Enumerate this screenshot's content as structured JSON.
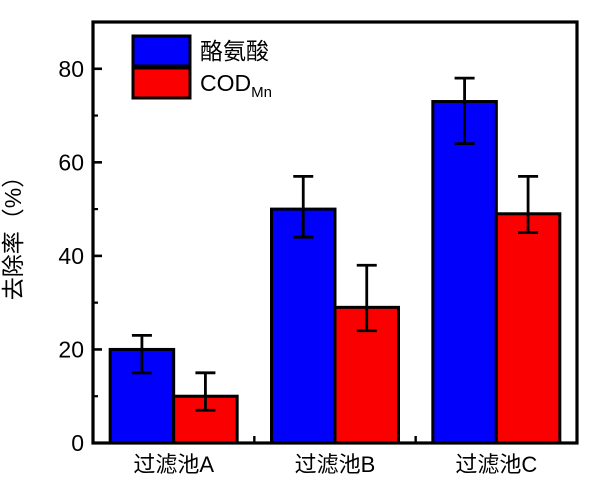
{
  "figure": {
    "background_color": "#ffffff",
    "axis_color": "#000000",
    "text_color": "#000000"
  },
  "chart_data": {
    "type": "bar",
    "title": "",
    "xlabel": "",
    "ylabel": "去除率（%）",
    "categories": [
      "过滤池A",
      "过滤池B",
      "过滤池C"
    ],
    "series": [
      {
        "name": "酪氨酸",
        "color": "#0000FB",
        "values": [
          20,
          50,
          73
        ],
        "err_low": [
          15,
          44,
          64
        ],
        "err_high": [
          23,
          57,
          78
        ]
      },
      {
        "name": "COD",
        "name_sub": "Mn",
        "color": "#FB0000",
        "values": [
          10,
          29,
          49
        ],
        "err_low": [
          7,
          24,
          45
        ],
        "err_high": [
          15,
          38,
          57
        ]
      }
    ],
    "ylim": [
      0,
      90
    ],
    "y_major_ticks": [
      0,
      20,
      40,
      60,
      80
    ],
    "y_minor_ticks": [
      10,
      30,
      50,
      70
    ],
    "grid": false,
    "error_bars": true,
    "legend_position": "top-left"
  }
}
